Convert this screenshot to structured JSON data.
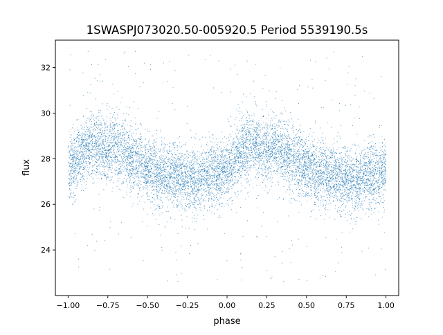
{
  "chart_data": {
    "type": "scatter",
    "title": "1SWASPJ073020.50-005920.5 Period 5539190.5s",
    "xlabel": "phase",
    "ylabel": "flux",
    "xlim": [
      -1.08,
      1.08
    ],
    "ylim": [
      22.0,
      33.2
    ],
    "xticks": [
      -1.0,
      -0.75,
      -0.5,
      -0.25,
      0.0,
      0.25,
      0.5,
      0.75,
      1.0
    ],
    "xtick_labels": [
      "−1.00",
      "−0.75",
      "−0.50",
      "−0.25",
      "0.00",
      "0.25",
      "0.50",
      "0.75",
      "1.00"
    ],
    "yticks": [
      24,
      26,
      28,
      30,
      32
    ],
    "ytick_labels": [
      "24",
      "26",
      "28",
      "30",
      "32"
    ],
    "grid": false,
    "legend": "none",
    "series": [
      {
        "color": "#1f77b4",
        "profile_phase": [
          0.0,
          0.05,
          0.1,
          0.15,
          0.2,
          0.25,
          0.3,
          0.35,
          0.4,
          0.45,
          0.5,
          0.55,
          0.6,
          0.65,
          0.7,
          0.75,
          0.8,
          0.85,
          0.9,
          0.95,
          1.0
        ],
        "profile_flux": [
          27.5,
          27.9,
          28.4,
          28.6,
          28.5,
          28.4,
          28.6,
          28.3,
          28.0,
          27.9,
          27.6,
          27.4,
          27.3,
          27.3,
          27.2,
          27.1,
          27.1,
          27.2,
          27.3,
          27.4,
          27.5
        ],
        "scatter_width": 0.7,
        "flux_range": [
          22.6,
          32.9
        ]
      }
    ]
  }
}
